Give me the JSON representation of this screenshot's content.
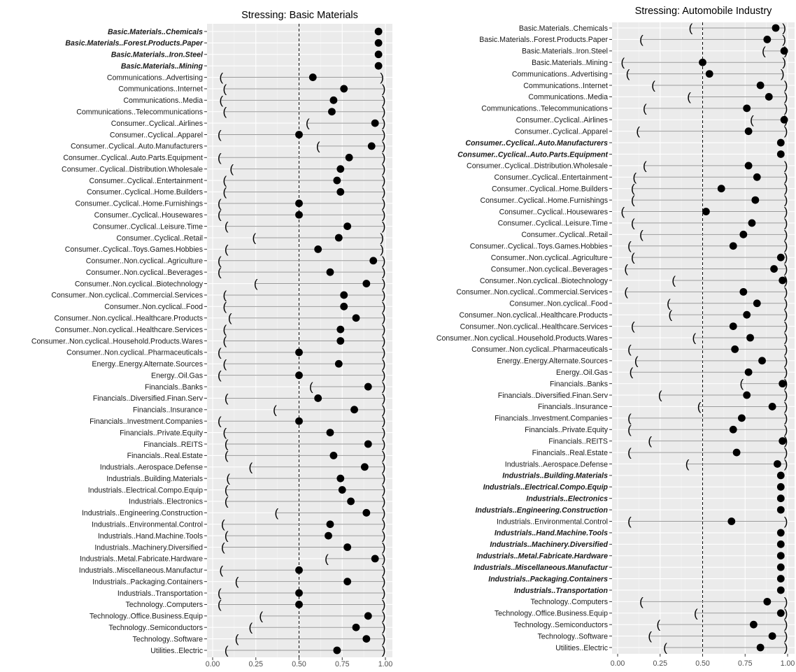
{
  "chart_data": [
    {
      "type": "dot-interval",
      "title": "Stressing: Basic Materials",
      "xlim": [
        0,
        1
      ],
      "x_ticks": [
        "0.00",
        "0.25",
        "0.50",
        "0.75",
        "1.00"
      ],
      "reference_line": 0.5,
      "grid": true,
      "categories": [
        "Basic.Materials..Chemicals",
        "Basic.Materials..Forest.Products.Paper",
        "Basic.Materials..Iron.Steel",
        "Basic.Materials..Mining",
        "Communications..Advertising",
        "Communications..Internet",
        "Communications..Media",
        "Communications..Telecommunications",
        "Consumer..Cyclical..Airlines",
        "Consumer..Cyclical..Apparel",
        "Consumer..Cyclical..Auto.Manufacturers",
        "Consumer..Cyclical..Auto.Parts.Equipment",
        "Consumer..Cyclical..Distribution.Wholesale",
        "Consumer..Cyclical..Entertainment",
        "Consumer..Cyclical..Home.Builders",
        "Consumer..Cyclical..Home.Furnishings",
        "Consumer..Cyclical..Housewares",
        "Consumer..Cyclical..Leisure.Time",
        "Consumer..Cyclical..Retail",
        "Consumer..Cyclical..Toys.Games.Hobbies",
        "Consumer..Non.cyclical..Agriculture",
        "Consumer..Non.cyclical..Beverages",
        "Consumer..Non.cyclical..Biotechnology",
        "Consumer..Non.cyclical..Commercial.Services",
        "Consumer..Non.cyclical..Food",
        "Consumer..Non.cyclical..Healthcare.Products",
        "Consumer..Non.cyclical..Healthcare.Services",
        "Consumer..Non.cyclical..Household.Products.Wares",
        "Consumer..Non.cyclical..Pharmaceuticals",
        "Energy..Energy.Alternate.Sources",
        "Energy..Oil.Gas",
        "Financials..Banks",
        "Financials..Diversified.Finan.Serv",
        "Financials..Insurance",
        "Financials..Investment.Companies",
        "Financials..Private.Equity",
        "Financials..REITS",
        "Financials..Real.Estate",
        "Industrials..Aerospace.Defense",
        "Industrials..Building.Materials",
        "Industrials..Electrical.Compo.Equip",
        "Industrials..Electronics",
        "Industrials..Engineering.Construction",
        "Industrials..Environmental.Control",
        "Industrials..Hand.Machine.Tools",
        "Industrials..Machinery.Diversified",
        "Industrials..Metal.Fabricate.Hardware",
        "Industrials..Miscellaneous.Manufactur",
        "Industrials..Packaging.Containers",
        "Industrials..Transportation",
        "Technology..Computers",
        "Technology..Office.Business.Equip",
        "Technology..Semiconductors",
        "Technology..Software",
        "Utilities..Electric"
      ],
      "highlighted": [
        "Basic.Materials..Chemicals",
        "Basic.Materials..Forest.Products.Paper",
        "Basic.Materials..Iron.Steel",
        "Basic.Materials..Mining"
      ],
      "point": [
        0.96,
        0.96,
        0.96,
        0.96,
        0.58,
        0.76,
        0.7,
        0.69,
        0.94,
        0.5,
        0.92,
        0.79,
        0.74,
        0.72,
        0.74,
        0.5,
        0.5,
        0.78,
        0.73,
        0.61,
        0.93,
        0.68,
        0.89,
        0.76,
        0.76,
        0.83,
        0.74,
        0.74,
        0.5,
        0.73,
        0.5,
        0.9,
        0.61,
        0.82,
        0.5,
        0.68,
        0.9,
        0.7,
        0.88,
        0.74,
        0.75,
        0.8,
        0.89,
        0.68,
        0.67,
        0.78,
        0.94,
        0.5,
        0.78,
        0.5,
        0.5,
        0.9,
        0.83,
        0.89,
        0.72
      ],
      "lower": [
        null,
        null,
        null,
        null,
        0.05,
        0.07,
        0.05,
        0.07,
        0.55,
        0.04,
        0.61,
        0.04,
        0.11,
        0.07,
        0.07,
        0.04,
        0.04,
        0.08,
        0.24,
        0.08,
        0.04,
        0.04,
        0.25,
        0.07,
        0.07,
        0.1,
        0.07,
        0.07,
        0.04,
        0.07,
        0.04,
        0.57,
        0.08,
        0.36,
        0.04,
        0.07,
        0.08,
        0.08,
        0.22,
        0.09,
        0.08,
        0.08,
        0.37,
        0.06,
        0.08,
        0.06,
        0.66,
        0.05,
        0.14,
        0.04,
        0.04,
        0.28,
        0.22,
        0.14,
        0.08
      ],
      "upper": [
        null,
        null,
        null,
        null,
        0.98,
        0.99,
        0.99,
        0.99,
        0.99,
        0.99,
        0.99,
        0.99,
        0.99,
        0.99,
        0.99,
        0.99,
        0.99,
        0.99,
        0.98,
        0.98,
        0.99,
        0.99,
        0.99,
        0.99,
        0.99,
        0.99,
        0.99,
        0.99,
        0.99,
        0.99,
        0.99,
        0.99,
        0.99,
        0.99,
        0.99,
        0.99,
        0.99,
        0.99,
        0.99,
        0.99,
        0.99,
        0.99,
        0.99,
        0.99,
        0.99,
        0.99,
        0.99,
        0.99,
        0.99,
        0.99,
        0.99,
        0.99,
        0.99,
        0.99,
        0.99
      ]
    },
    {
      "type": "dot-interval",
      "title": "Stressing: Automobile Industry",
      "xlim": [
        0,
        1
      ],
      "x_ticks": [
        "0.00",
        "0.25",
        "0.50",
        "0.75",
        "1.00"
      ],
      "reference_line": 0.5,
      "grid": true,
      "categories": [
        "Basic.Materials..Chemicals",
        "Basic.Materials..Forest.Products.Paper",
        "Basic.Materials..Iron.Steel",
        "Basic.Materials..Mining",
        "Communications..Advertising",
        "Communications..Internet",
        "Communications..Media",
        "Communications..Telecommunications",
        "Consumer..Cyclical..Airlines",
        "Consumer..Cyclical..Apparel",
        "Consumer..Cyclical..Auto.Manufacturers",
        "Consumer..Cyclical..Auto.Parts.Equipment",
        "Consumer..Cyclical..Distribution.Wholesale",
        "Consumer..Cyclical..Entertainment",
        "Consumer..Cyclical..Home.Builders",
        "Consumer..Cyclical..Home.Furnishings",
        "Consumer..Cyclical..Housewares",
        "Consumer..Cyclical..Leisure.Time",
        "Consumer..Cyclical..Retail",
        "Consumer..Cyclical..Toys.Games.Hobbies",
        "Consumer..Non.cyclical..Agriculture",
        "Consumer..Non.cyclical..Beverages",
        "Consumer..Non.cyclical..Biotechnology",
        "Consumer..Non.cyclical..Commercial.Services",
        "Consumer..Non.cyclical..Food",
        "Consumer..Non.cyclical..Healthcare.Products",
        "Consumer..Non.cyclical..Healthcare.Services",
        "Consumer..Non.cyclical..Household.Products.Wares",
        "Consumer..Non.cyclical..Pharmaceuticals",
        "Energy..Energy.Alternate.Sources",
        "Energy..Oil.Gas",
        "Financials..Banks",
        "Financials..Diversified.Finan.Serv",
        "Financials..Insurance",
        "Financials..Investment.Companies",
        "Financials..Private.Equity",
        "Financials..REITS",
        "Financials..Real.Estate",
        "Industrials..Aerospace.Defense",
        "Industrials..Building.Materials",
        "Industrials..Electrical.Compo.Equip",
        "Industrials..Electronics",
        "Industrials..Engineering.Construction",
        "Industrials..Environmental.Control",
        "Industrials..Hand.Machine.Tools",
        "Industrials..Machinery.Diversified",
        "Industrials..Metal.Fabricate.Hardware",
        "Industrials..Miscellaneous.Manufactur",
        "Industrials..Packaging.Containers",
        "Industrials..Transportation",
        "Technology..Computers",
        "Technology..Office.Business.Equip",
        "Technology..Semiconductors",
        "Technology..Software",
        "Utilities..Electric"
      ],
      "highlighted": [
        "Consumer..Cyclical..Auto.Manufacturers",
        "Consumer..Cyclical..Auto.Parts.Equipment",
        "Industrials..Building.Materials",
        "Industrials..Electrical.Compo.Equip",
        "Industrials..Electronics",
        "Industrials..Engineering.Construction",
        "Industrials..Hand.Machine.Tools",
        "Industrials..Machinery.Diversified",
        "Industrials..Metal.Fabricate.Hardware",
        "Industrials..Miscellaneous.Manufactur",
        "Industrials..Packaging.Containers",
        "Industrials..Transportation"
      ],
      "point": [
        0.93,
        0.88,
        0.98,
        0.5,
        0.54,
        0.84,
        0.89,
        0.76,
        0.98,
        0.77,
        0.96,
        0.96,
        0.77,
        0.82,
        0.61,
        0.81,
        0.52,
        0.79,
        0.74,
        0.68,
        0.96,
        0.92,
        0.97,
        0.74,
        0.82,
        0.76,
        0.68,
        0.78,
        0.69,
        0.85,
        0.77,
        0.97,
        0.76,
        0.91,
        0.73,
        0.68,
        0.97,
        0.7,
        0.94,
        0.96,
        0.96,
        0.96,
        0.96,
        0.67,
        0.96,
        0.96,
        0.96,
        0.96,
        0.96,
        0.96,
        0.88,
        0.96,
        0.8,
        0.91,
        0.84
      ],
      "lower": [
        0.43,
        0.14,
        0.86,
        0.03,
        0.06,
        0.21,
        0.42,
        0.16,
        0.79,
        0.12,
        null,
        null,
        0.16,
        0.1,
        0.09,
        0.09,
        0.03,
        0.09,
        0.14,
        0.07,
        0.09,
        0.05,
        0.33,
        0.05,
        0.3,
        0.31,
        0.09,
        0.45,
        0.07,
        0.11,
        0.08,
        0.73,
        0.25,
        0.48,
        0.07,
        0.07,
        0.19,
        0.07,
        0.41,
        null,
        null,
        null,
        null,
        0.07,
        null,
        null,
        null,
        null,
        null,
        null,
        0.14,
        0.46,
        0.24,
        0.19,
        0.28
      ],
      "upper": [
        0.98,
        0.98,
        0.99,
        0.98,
        0.97,
        0.99,
        0.99,
        0.99,
        0.99,
        0.99,
        null,
        null,
        0.99,
        0.99,
        0.99,
        0.99,
        0.99,
        0.99,
        0.99,
        0.99,
        0.99,
        0.99,
        0.99,
        0.99,
        0.99,
        0.99,
        0.99,
        0.99,
        0.99,
        0.99,
        0.99,
        0.99,
        0.99,
        0.99,
        0.99,
        0.99,
        0.99,
        0.99,
        0.99,
        null,
        null,
        null,
        null,
        0.99,
        null,
        null,
        null,
        null,
        null,
        null,
        0.99,
        0.99,
        0.99,
        0.99,
        0.99
      ]
    }
  ]
}
